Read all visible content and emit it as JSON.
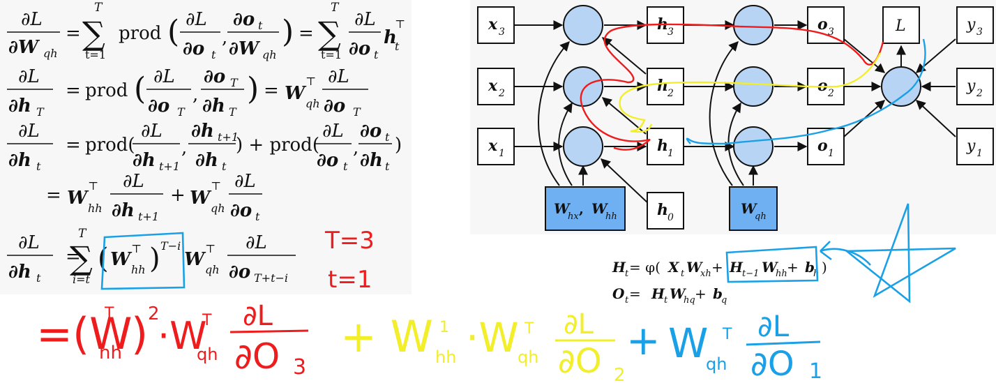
{
  "equations": {
    "eq1": {
      "lhs_num": "∂L",
      "lhs_den": "∂W",
      "lhs_den_sub": "qh",
      "sum_top": "T",
      "sum_bot": "t=1",
      "prod": "prod",
      "a_num": "∂L",
      "a_den": "∂o",
      "a_den_sub": "t",
      "b_num": "∂o",
      "b_num_sub": "t",
      "b_den": "∂W",
      "b_den_sub": "qh",
      "r_num": "∂L",
      "r_den": "∂o",
      "r_den_sub": "t",
      "r_h": "h",
      "r_h_sup": "⊤",
      "r_h_sub": "t"
    },
    "eq2": {
      "lhs_num": "∂L",
      "lhs_den": "∂h",
      "lhs_den_sub": "T",
      "prod": "prod",
      "a_num": "∂L",
      "a_den": "∂o",
      "a_den_sub": "T",
      "b_num": "∂o",
      "b_num_sub": "T",
      "b_den": "∂h",
      "b_den_sub": "T",
      "w": "W",
      "w_sup": "⊤",
      "w_sub": "qh",
      "r_num": "∂L",
      "r_den": "∂o",
      "r_den_sub": "T"
    },
    "eq3": {
      "lhs_num": "∂L",
      "lhs_den": "∂h",
      "lhs_den_sub": "t",
      "prod": "prod(",
      "a_num": "∂L",
      "a_den": "∂h",
      "a_den_sub": "t+1",
      "b_num": "∂h",
      "b_num_sub": "t+1",
      "b_den": "∂h",
      "b_den_sub": "t",
      "plus": ") + prod(",
      "c_num": "∂L",
      "c_den": "∂o",
      "c_den_sub": "t",
      "d_num": "∂o",
      "d_num_sub": "t",
      "d_den": "∂h",
      "d_den_sub": "t",
      "close": ")"
    },
    "eq4": {
      "w1": "W",
      "w1_sup": "⊤",
      "w1_sub": "hh",
      "a_num": "∂L",
      "a_den": "∂h",
      "a_den_sub": "t+1",
      "plus": "+",
      "w2": "W",
      "w2_sup": "⊤",
      "w2_sub": "qh",
      "b_num": "∂L",
      "b_den": "∂o",
      "b_den_sub": "t"
    },
    "eq5": {
      "lhs_num": "∂L",
      "lhs_den": "∂h",
      "lhs_den_sub": "t",
      "sum_top": "T",
      "sum_bot": "i=t",
      "w1": "W",
      "w1_sup": "⊤",
      "w1_sub": "hh",
      "exp": "T−i",
      "w2": "W",
      "w2_sup": "⊤",
      "w2_sub": "qh",
      "r_num": "∂L",
      "r_den": "∂o",
      "r_den_sub": "T+t−i"
    }
  },
  "diagram": {
    "nodes": {
      "x3": {
        "base": "x",
        "sub": "3"
      },
      "x2": {
        "base": "x",
        "sub": "2"
      },
      "x1": {
        "base": "x",
        "sub": "1"
      },
      "h3": {
        "base": "h",
        "sub": "3"
      },
      "h2": {
        "base": "h",
        "sub": "2"
      },
      "h1": {
        "base": "h",
        "sub": "1"
      },
      "h0": {
        "base": "h",
        "sub": "0"
      },
      "o3": {
        "base": "o",
        "sub": "3"
      },
      "o2": {
        "base": "o",
        "sub": "2"
      },
      "o1": {
        "base": "o",
        "sub": "1"
      },
      "L": {
        "base": "L"
      },
      "y3": {
        "base": "y",
        "sub": "3"
      },
      "y2": {
        "base": "y",
        "sub": "2"
      },
      "y1": {
        "base": "y",
        "sub": "1"
      },
      "Whx": {
        "a": "W",
        "a_sub": "hx",
        "sep": ", ",
        "b": "W",
        "b_sub": "hh"
      },
      "Wqh": {
        "a": "W",
        "a_sub": "qh"
      }
    },
    "colors": {
      "circle_fill": "#b8d4f5",
      "param_fill": "#6fb0f2",
      "box_fill": "#ffffff"
    }
  },
  "formulas": {
    "f1": {
      "H": "H",
      "H_sub": "t",
      "eq": " = φ(",
      "X": "X",
      "X_sub": "t",
      "W1": "W",
      "W1_sub": "xh",
      "plus1": " + ",
      "H2": "H",
      "H2_sub": "t−1",
      "W2": "W",
      "W2_sub": "hh",
      "plus2": " + ",
      "b": "b",
      "b_sub": "h",
      "close": ")"
    },
    "f2": {
      "O": "O",
      "O_sub": "t",
      "eq": " = ",
      "H": "H",
      "H_sub": "t",
      "W": "W",
      "W_sub": "hq",
      "plus": " + ",
      "b": "b",
      "b_sub": "q"
    }
  },
  "annotations": {
    "T_note": "T=3",
    "t_note": "t=1",
    "expansion": {
      "red": {
        "open": "=(W",
        "sub": "hh",
        "sup": "T",
        "close": ")",
        "pow": "2",
        "dot": "·W",
        "sub2": "qh",
        "sup2": "T",
        "num": "∂L",
        "den": "∂O",
        "den_sub": "3"
      },
      "yellow": {
        "plus": "+ W",
        "sub": "hh",
        "sup": "1",
        "dot": "·W",
        "sub2": "qh",
        "sup2": "T",
        "num": "∂L",
        "den": "∂O",
        "den_sub": "2"
      },
      "blue": {
        "plus": "+",
        "w": "W",
        "sub": "qh",
        "sup": "T",
        "num": "∂L",
        "den": "∂O",
        "den_sub": "1"
      }
    },
    "colors": {
      "red": "#ee1c1c",
      "yellow": "#f2ee2a",
      "blue": "#1aa0e6"
    }
  }
}
